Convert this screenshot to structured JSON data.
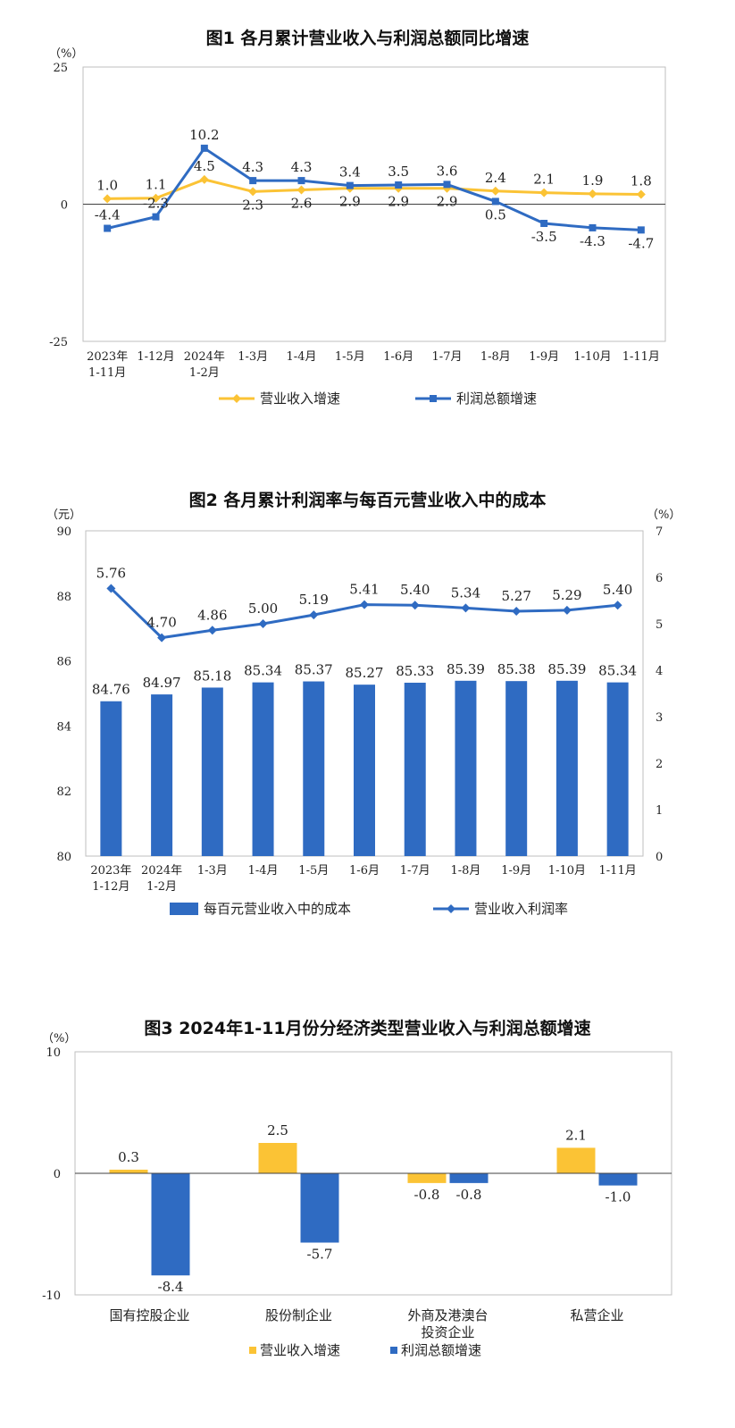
{
  "colors": {
    "orange": "#fbc335",
    "blue": "#2f6bc2",
    "axis": "#bfbfbf",
    "text": "#222222"
  },
  "chart_data": [
    {
      "type": "line",
      "title": "图1  各月累计营业收入与利润总额同比增速",
      "ylabel": "（%）",
      "ylim": [
        -25,
        25
      ],
      "yticks": [
        {
          "v": 25,
          "t": "25"
        },
        {
          "v": 0,
          "t": "0"
        },
        {
          "v": -25,
          "t": "-25"
        }
      ],
      "categories": [
        {
          "line1": "2023年",
          "line2": "1-11月"
        },
        {
          "line1": "1-12月",
          "line2": ""
        },
        {
          "line1": "2024年",
          "line2": "1-2月"
        },
        {
          "line1": "1-3月",
          "line2": ""
        },
        {
          "line1": "1-4月",
          "line2": ""
        },
        {
          "line1": "1-5月",
          "line2": ""
        },
        {
          "line1": "1-6月",
          "line2": ""
        },
        {
          "line1": "1-7月",
          "line2": ""
        },
        {
          "line1": "1-8月",
          "line2": ""
        },
        {
          "line1": "1-9月",
          "line2": ""
        },
        {
          "line1": "1-10月",
          "line2": ""
        },
        {
          "line1": "1-11月",
          "line2": ""
        }
      ],
      "series": [
        {
          "name": "营业收入增速",
          "color": "#fbc335",
          "marker": "diamond",
          "values": [
            1.0,
            1.1,
            4.5,
            2.3,
            2.6,
            2.9,
            2.9,
            2.9,
            2.4,
            2.1,
            1.9,
            1.8
          ],
          "labels": [
            "1.0",
            "1.1",
            "4.5",
            "2.3",
            "2.6",
            "2.9",
            "2.9",
            "2.9",
            "2.4",
            "2.1",
            "1.9",
            "1.8"
          ],
          "label_pos": [
            "above",
            "above",
            "above",
            "below",
            "below",
            "below",
            "below",
            "below",
            "above",
            "above",
            "above",
            "above"
          ]
        },
        {
          "name": "利润总额增速",
          "color": "#2f6bc2",
          "marker": "square",
          "values": [
            -4.4,
            -2.3,
            10.2,
            4.3,
            4.3,
            3.4,
            3.5,
            3.6,
            0.5,
            -3.5,
            -4.3,
            -4.7
          ],
          "labels": [
            "-4.4",
            "-2.3",
            "10.2",
            "4.3",
            "4.3",
            "3.4",
            "3.5",
            "3.6",
            "0.5",
            "-3.5",
            "-4.3",
            "-4.7"
          ],
          "label_pos": [
            "above",
            "above",
            "above",
            "above",
            "above",
            "above",
            "above",
            "above",
            "below",
            "below",
            "below",
            "below"
          ]
        }
      ],
      "legend": [
        "营业收入增速",
        "利润总额增速"
      ]
    },
    {
      "type": "bar+line",
      "title": "图2  各月累计利润率与每百元营业收入中的成本",
      "ylabel_left": "（元）",
      "ylabel_right": "（%）",
      "ylim_left": [
        80,
        90
      ],
      "ylim_right": [
        0,
        7
      ],
      "yticks_left": [
        {
          "v": 90,
          "t": "90"
        },
        {
          "v": 88,
          "t": "88"
        },
        {
          "v": 86,
          "t": "86"
        },
        {
          "v": 84,
          "t": "84"
        },
        {
          "v": 82,
          "t": "82"
        },
        {
          "v": 80,
          "t": "80"
        }
      ],
      "yticks_right": [
        {
          "v": 7,
          "t": "7"
        },
        {
          "v": 6,
          "t": "6"
        },
        {
          "v": 5,
          "t": "5"
        },
        {
          "v": 4,
          "t": "4"
        },
        {
          "v": 3,
          "t": "3"
        },
        {
          "v": 2,
          "t": "2"
        },
        {
          "v": 1,
          "t": "1"
        },
        {
          "v": 0,
          "t": "0"
        }
      ],
      "categories": [
        {
          "line1": "2023年",
          "line2": "1-12月"
        },
        {
          "line1": "2024年",
          "line2": "1-2月"
        },
        {
          "line1": "1-3月",
          "line2": ""
        },
        {
          "line1": "1-4月",
          "line2": ""
        },
        {
          "line1": "1-5月",
          "line2": ""
        },
        {
          "line1": "1-6月",
          "line2": ""
        },
        {
          "line1": "1-7月",
          "line2": ""
        },
        {
          "line1": "1-8月",
          "line2": ""
        },
        {
          "line1": "1-9月",
          "line2": ""
        },
        {
          "line1": "1-10月",
          "line2": ""
        },
        {
          "line1": "1-11月",
          "line2": ""
        }
      ],
      "bars": {
        "name": "每百元营业收入中的成本",
        "color": "#2f6bc2",
        "values": [
          84.76,
          84.97,
          85.18,
          85.34,
          85.37,
          85.27,
          85.33,
          85.39,
          85.38,
          85.39,
          85.34
        ],
        "labels": [
          "84.76",
          "84.97",
          "85.18",
          "85.34",
          "85.37",
          "85.27",
          "85.33",
          "85.39",
          "85.38",
          "85.39",
          "85.34"
        ]
      },
      "line": {
        "name": "营业收入利润率",
        "color": "#2f6bc2",
        "values": [
          5.76,
          4.7,
          4.86,
          5.0,
          5.19,
          5.41,
          5.4,
          5.34,
          5.27,
          5.29,
          5.4
        ],
        "labels": [
          "5.76",
          "4.70",
          "4.86",
          "5.00",
          "5.19",
          "5.41",
          "5.40",
          "5.34",
          "5.27",
          "5.29",
          "5.40"
        ]
      },
      "legend": [
        "每百元营业收入中的成本",
        "营业收入利润率"
      ]
    },
    {
      "type": "bar",
      "title": "图3  2024年1-11月份分经济类型营业收入与利润总额增速",
      "ylabel": "（%）",
      "ylim": [
        -10,
        10
      ],
      "yticks": [
        {
          "v": 10,
          "t": "10"
        },
        {
          "v": 0,
          "t": "0"
        },
        {
          "v": -10,
          "t": "-10"
        }
      ],
      "categories": [
        {
          "line1": "国有控股企业",
          "line2": ""
        },
        {
          "line1": "股份制企业",
          "line2": ""
        },
        {
          "line1": "外商及港澳台",
          "line2": "投资企业"
        },
        {
          "line1": "私营企业",
          "line2": ""
        }
      ],
      "series": [
        {
          "name": "营业收入增速",
          "color": "#fbc335",
          "values": [
            0.3,
            2.5,
            -0.8,
            2.1
          ],
          "labels": [
            "0.3",
            "2.5",
            "-0.8",
            "2.1"
          ]
        },
        {
          "name": "利润总额增速",
          "color": "#2f6bc2",
          "values": [
            -8.4,
            -5.7,
            -0.8,
            -1.0
          ],
          "labels": [
            "-8.4",
            "-5.7",
            "-0.8",
            "-1.0"
          ]
        }
      ],
      "legend": [
        "营业收入增速",
        "利润总额增速"
      ]
    }
  ]
}
